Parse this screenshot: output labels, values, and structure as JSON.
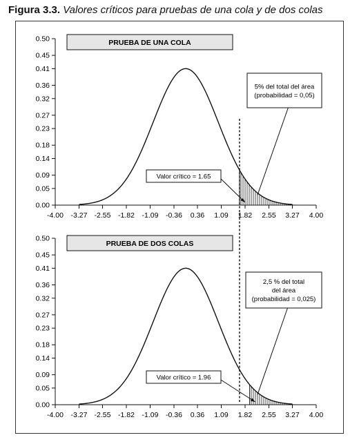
{
  "figure": {
    "label": "Figura 3.3.",
    "caption": "Valores críticos para pruebas de una cola y de dos colas"
  },
  "chart_data": [
    {
      "type": "area",
      "title": "PRUEBA DE UNA COLA",
      "xlabel": "",
      "ylabel": "",
      "xlim": [
        -4.0,
        4.0
      ],
      "ylim": [
        0.0,
        0.5
      ],
      "x_ticks": [
        "-4.00",
        "-3.27",
        "-2.55",
        "-1.82",
        "-1.09",
        "-0.36",
        "0.36",
        "1.09",
        "1.82",
        "2.55",
        "3.27",
        "4.00"
      ],
      "y_ticks": [
        "0.00",
        "0.05",
        "0.09",
        "0.14",
        "0.18",
        "0.23",
        "0.27",
        "0.32",
        "0.36",
        "0.41",
        "0.45",
        "0.50"
      ],
      "curve": "normal",
      "mean": 0,
      "sd": 1,
      "peak": 0.41,
      "critical_value": 1.65,
      "shaded_region": [
        1.65,
        4.0
      ],
      "annotations": {
        "critical_label": "Valor crítico = 1.65",
        "area_label": [
          "5% del total del área",
          "(probabilidad = 0,05)"
        ]
      }
    },
    {
      "type": "area",
      "title": "PRUEBA DE DOS COLAS",
      "xlabel": "",
      "ylabel": "",
      "xlim": [
        -4.0,
        4.0
      ],
      "ylim": [
        0.0,
        0.5
      ],
      "x_ticks": [
        "-4.00",
        "-3.27",
        "-2.55",
        "-1.82",
        "-1.09",
        "-0.36",
        "0.36",
        "1.09",
        "1.82",
        "2.55",
        "3.27",
        "4.00"
      ],
      "y_ticks": [
        "0.00",
        "0.05",
        "0.09",
        "0.14",
        "0.18",
        "0.23",
        "0.27",
        "0.32",
        "0.36",
        "0.41",
        "0.45",
        "0.50"
      ],
      "curve": "normal",
      "mean": 0,
      "sd": 1,
      "peak": 0.41,
      "critical_value": 1.96,
      "shaded_region": [
        1.96,
        4.0
      ],
      "annotations": {
        "critical_label": "Valor crítico = 1.96",
        "area_label": [
          "2,5 % del total",
          "del área",
          "(probabilidad = 0,025)"
        ]
      }
    }
  ],
  "reference_line_x": 1.65
}
